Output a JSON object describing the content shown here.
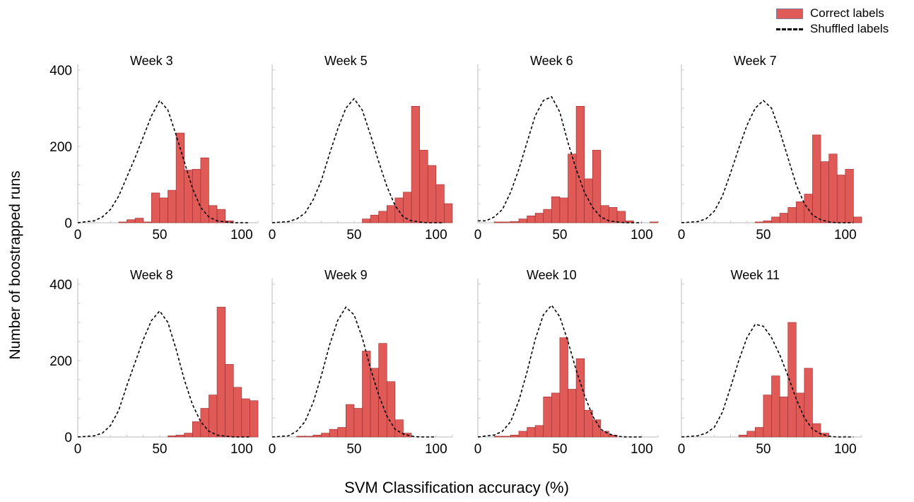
{
  "legend": {
    "correct_label": "Correct labels",
    "shuffled_label": "Shuffled labels"
  },
  "colors": {
    "bar_fill": "#e05a57",
    "bar_edge": "#9a2b2b",
    "curve": "#000000"
  },
  "ylabel": "Number of boostrapped runs",
  "xlabel": "SVM Classification accuracy (%)",
  "chart_data": {
    "type": "bar",
    "grid": "off",
    "legend_position": "top-right",
    "bin_width": 5,
    "xlim": [
      0,
      110
    ],
    "ylim": [
      0,
      400
    ],
    "x_ticks": [
      0,
      50,
      100
    ],
    "y_ticks": [
      0,
      200,
      400
    ],
    "panels": [
      {
        "title": "Week 3",
        "bins": [
          25,
          30,
          35,
          40,
          45,
          50,
          55,
          60,
          65,
          70,
          75,
          80,
          85,
          90,
          95
        ],
        "values": [
          2,
          8,
          12,
          2,
          78,
          65,
          85,
          235,
          138,
          140,
          170,
          45,
          35,
          5,
          0
        ],
        "shuffled": {
          "x": [
            0,
            10,
            15,
            20,
            25,
            30,
            35,
            40,
            45,
            50,
            55,
            60,
            65,
            70,
            75,
            80,
            85,
            90,
            95,
            100,
            105
          ],
          "y": [
            0,
            5,
            15,
            35,
            70,
            120,
            170,
            225,
            280,
            320,
            295,
            230,
            160,
            90,
            40,
            15,
            5,
            2,
            0,
            0,
            0
          ]
        }
      },
      {
        "title": "Week 5",
        "bins": [
          40,
          45,
          50,
          55,
          60,
          65,
          70,
          75,
          80,
          85,
          90,
          95,
          100,
          105
        ],
        "values": [
          0,
          0,
          0,
          10,
          20,
          30,
          45,
          65,
          80,
          305,
          190,
          150,
          100,
          50
        ],
        "shuffled": {
          "x": [
            0,
            10,
            15,
            20,
            25,
            30,
            35,
            40,
            45,
            50,
            55,
            60,
            65,
            70,
            75,
            80,
            85,
            90,
            95,
            100,
            105
          ],
          "y": [
            0,
            3,
            10,
            25,
            60,
            110,
            180,
            245,
            300,
            325,
            295,
            230,
            160,
            95,
            45,
            15,
            5,
            2,
            0,
            0,
            0
          ]
        }
      },
      {
        "title": "Week 6",
        "bins": [
          10,
          15,
          20,
          25,
          30,
          35,
          40,
          45,
          50,
          55,
          60,
          65,
          70,
          75,
          80,
          85,
          90,
          95,
          100,
          105
        ],
        "values": [
          2,
          2,
          3,
          10,
          18,
          25,
          35,
          68,
          65,
          180,
          305,
          115,
          190,
          45,
          40,
          30,
          5,
          0,
          0,
          2
        ],
        "shuffled": {
          "x": [
            0,
            5,
            10,
            15,
            20,
            25,
            30,
            35,
            40,
            45,
            50,
            55,
            60,
            65,
            70,
            75,
            80,
            85,
            90,
            95,
            100
          ],
          "y": [
            5,
            5,
            15,
            35,
            80,
            140,
            210,
            280,
            320,
            330,
            290,
            210,
            140,
            80,
            40,
            15,
            5,
            2,
            0,
            0,
            0
          ]
        }
      },
      {
        "title": "Week 7",
        "bins": [
          40,
          45,
          50,
          55,
          60,
          65,
          70,
          75,
          80,
          85,
          90,
          95,
          100,
          105
        ],
        "values": [
          0,
          2,
          5,
          15,
          25,
          40,
          55,
          75,
          230,
          160,
          180,
          125,
          140,
          15
        ],
        "shuffled": {
          "x": [
            0,
            10,
            15,
            20,
            25,
            30,
            35,
            40,
            45,
            50,
            55,
            60,
            65,
            70,
            75,
            80,
            85,
            90,
            95,
            100,
            105
          ],
          "y": [
            0,
            3,
            10,
            30,
            70,
            130,
            195,
            255,
            300,
            320,
            300,
            240,
            170,
            100,
            50,
            20,
            8,
            2,
            0,
            0,
            0
          ]
        }
      },
      {
        "title": "Week 8",
        "bins": [
          40,
          45,
          50,
          55,
          60,
          65,
          70,
          75,
          80,
          85,
          90,
          95,
          100,
          105
        ],
        "values": [
          0,
          0,
          0,
          3,
          5,
          10,
          40,
          75,
          110,
          340,
          190,
          130,
          100,
          95
        ],
        "shuffled": {
          "x": [
            0,
            10,
            15,
            20,
            25,
            30,
            35,
            40,
            45,
            50,
            55,
            60,
            65,
            70,
            75,
            80,
            85,
            90,
            95,
            100,
            105
          ],
          "y": [
            0,
            3,
            10,
            30,
            70,
            135,
            195,
            255,
            305,
            330,
            300,
            230,
            150,
            85,
            40,
            15,
            5,
            2,
            0,
            0,
            0
          ]
        }
      },
      {
        "title": "Week 9",
        "bins": [
          15,
          20,
          25,
          30,
          35,
          40,
          45,
          50,
          55,
          60,
          65,
          70,
          75,
          80,
          85,
          90,
          95
        ],
        "values": [
          2,
          2,
          5,
          10,
          20,
          25,
          85,
          75,
          225,
          180,
          245,
          145,
          45,
          10,
          0,
          0,
          0
        ],
        "shuffled": {
          "x": [
            0,
            10,
            15,
            20,
            25,
            30,
            35,
            40,
            45,
            50,
            55,
            60,
            65,
            70,
            75,
            80,
            85,
            90,
            95,
            100
          ],
          "y": [
            0,
            3,
            15,
            40,
            90,
            160,
            240,
            305,
            340,
            320,
            260,
            180,
            110,
            55,
            20,
            8,
            2,
            0,
            0,
            0
          ]
        }
      },
      {
        "title": "Week 10",
        "bins": [
          10,
          15,
          20,
          25,
          30,
          35,
          40,
          45,
          50,
          55,
          60,
          65,
          70,
          75,
          80,
          85,
          90,
          95,
          100
        ],
        "values": [
          2,
          2,
          5,
          15,
          25,
          30,
          105,
          115,
          260,
          125,
          205,
          70,
          45,
          15,
          5,
          0,
          0,
          0,
          0
        ],
        "shuffled": {
          "x": [
            0,
            10,
            15,
            20,
            25,
            30,
            35,
            40,
            45,
            50,
            55,
            60,
            65,
            70,
            75,
            80,
            85,
            90,
            95,
            100
          ],
          "y": [
            0,
            5,
            15,
            40,
            95,
            170,
            255,
            320,
            345,
            315,
            250,
            175,
            110,
            55,
            20,
            8,
            2,
            0,
            0,
            0
          ]
        }
      },
      {
        "title": "Week 11",
        "bins": [
          35,
          40,
          45,
          50,
          55,
          60,
          65,
          70,
          75,
          80,
          85,
          90,
          95,
          100,
          105
        ],
        "values": [
          5,
          15,
          25,
          110,
          160,
          105,
          300,
          115,
          180,
          35,
          10,
          0,
          0,
          0,
          0
        ],
        "shuffled": {
          "x": [
            0,
            10,
            15,
            20,
            25,
            30,
            35,
            40,
            45,
            50,
            55,
            60,
            65,
            70,
            75,
            80,
            85,
            90,
            95,
            100,
            105
          ],
          "y": [
            0,
            3,
            10,
            25,
            65,
            130,
            200,
            260,
            295,
            290,
            260,
            215,
            160,
            100,
            50,
            20,
            8,
            2,
            0,
            0,
            0
          ]
        }
      }
    ]
  }
}
